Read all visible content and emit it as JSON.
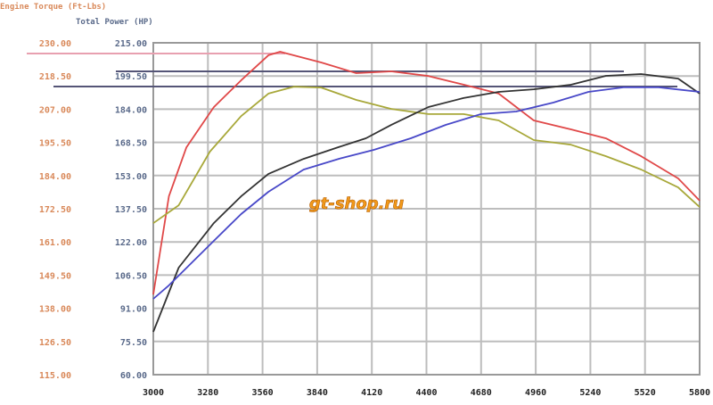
{
  "chart_data": {
    "type": "line",
    "title": "",
    "left_axis_label": "Engine Torque (Ft-Lbs)",
    "right_axis_label": "Total Power (HP)",
    "xlabel": "",
    "x_ticks": [
      "3000",
      "3280",
      "3560",
      "3840",
      "4120",
      "4400",
      "4680",
      "4960",
      "5240",
      "5520",
      "5800"
    ],
    "xlim": [
      3000,
      5800
    ],
    "torque_ticks": [
      "230.00",
      "218.50",
      "207.00",
      "195.50",
      "184.00",
      "172.50",
      "161.00",
      "149.50",
      "138.00",
      "126.50",
      "115.00"
    ],
    "torque_lim": [
      115,
      230
    ],
    "power_ticks": [
      "215.00",
      "199.50",
      "184.00",
      "168.50",
      "153.00",
      "137.50",
      "122.00",
      "106.50",
      "91.00",
      "75.50",
      "60.00"
    ],
    "power_lim": [
      60,
      215
    ],
    "grid": true,
    "series": [
      {
        "axis": "torque",
        "color": "#e04848",
        "x": [
          3000,
          3080,
          3170,
          3310,
          3450,
          3590,
          3650,
          3860,
          4040,
          4220,
          4410,
          4590,
          4770,
          4950,
          5140,
          5320,
          5500,
          5690,
          5800
        ],
        "y": [
          142.8,
          176.8,
          193.8,
          207.7,
          217.0,
          225.7,
          226.9,
          223.2,
          219.5,
          220.1,
          218.5,
          215.5,
          212.4,
          203.1,
          200.0,
          196.9,
          190.7,
          183.0,
          175.3
        ]
      },
      {
        "axis": "torque",
        "color": "#a8a83a",
        "x": [
          3000,
          3130,
          3290,
          3450,
          3590,
          3720,
          3860,
          4040,
          4220,
          4410,
          4590,
          4770,
          4950,
          5140,
          5320,
          5500,
          5690,
          5800
        ],
        "y": [
          167.5,
          173.7,
          192.3,
          204.6,
          212.4,
          214.8,
          214.5,
          210.2,
          207.1,
          205.3,
          205.3,
          203.1,
          196.3,
          194.7,
          190.7,
          186.1,
          179.9,
          173.1
        ]
      },
      {
        "axis": "power",
        "color": "#333333",
        "x": [
          3000,
          3130,
          3310,
          3450,
          3590,
          3770,
          3950,
          4090,
          4220,
          4410,
          4590,
          4770,
          4950,
          5140,
          5320,
          5500,
          5690,
          5800
        ],
        "y": [
          80.0,
          110.0,
          130.8,
          143.3,
          153.8,
          160.8,
          166.3,
          170.4,
          176.7,
          185.0,
          189.2,
          192.1,
          193.3,
          195.4,
          199.6,
          200.4,
          198.3,
          191.3
        ]
      },
      {
        "axis": "power",
        "color": "#4848c8",
        "x": [
          3000,
          3080,
          3310,
          3450,
          3590,
          3770,
          3950,
          4130,
          4320,
          4500,
          4680,
          4860,
          5050,
          5230,
          5410,
          5590,
          5800
        ],
        "y": [
          95.4,
          101.7,
          122.5,
          135.0,
          145.4,
          155.8,
          160.8,
          165.0,
          170.4,
          176.7,
          181.7,
          182.9,
          187.1,
          192.1,
          194.2,
          194.2,
          192.1
        ]
      }
    ]
  },
  "colors": {
    "torque_label": "#d9895a",
    "power_label": "#5a6a8a",
    "grid": "#bdbdbd"
  },
  "watermark": "gt-shop.ru"
}
